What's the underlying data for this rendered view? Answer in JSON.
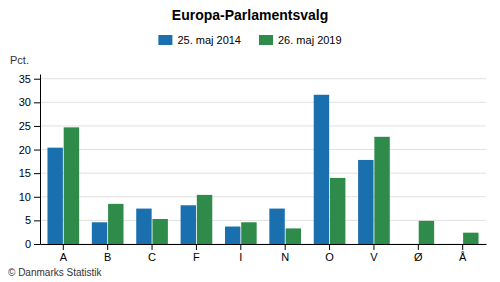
{
  "chart_data": {
    "type": "bar",
    "title": "Europa-Parlamentsvalg",
    "categories": [
      "A",
      "B",
      "C",
      "F",
      "I",
      "N",
      "O",
      "V",
      "Ø",
      "Å"
    ],
    "series": [
      {
        "name": "25. maj 2014",
        "color": "#1a6faf",
        "values": [
          20.4,
          4.6,
          7.5,
          8.2,
          3.7,
          7.5,
          31.6,
          17.8,
          0.0,
          0.0
        ]
      },
      {
        "name": "26. maj 2019",
        "color": "#2e8b4a",
        "values": [
          24.7,
          8.5,
          5.3,
          10.4,
          4.6,
          3.3,
          14.0,
          22.7,
          4.9,
          2.4
        ]
      }
    ],
    "ylabel": "Pct.",
    "footer": "© Danmarks Statistik",
    "ylim": [
      0,
      36
    ],
    "yticks": [
      0,
      5,
      10,
      15,
      20,
      25,
      30,
      35
    ],
    "grid": true,
    "legend": "top"
  }
}
